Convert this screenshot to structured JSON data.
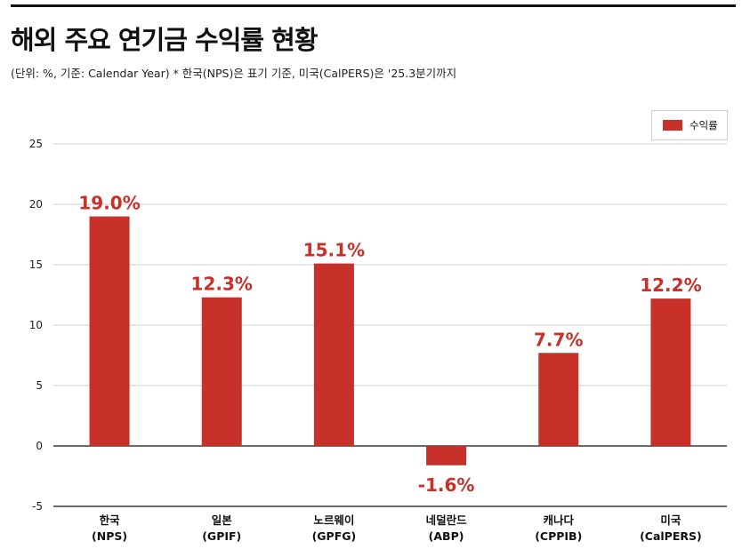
{
  "header": {
    "title": "해외 주요 연기금 수익률 현황",
    "subtitle": "(단위: %, 기준: Calendar Year) * 한국(NPS)은 표기 기준, 미국(CalPERS)은 '25.3분기까지"
  },
  "colors": {
    "bar": "#c8302a",
    "label": "#c8302a",
    "grid": "#bdbdbd",
    "axis": "#111111"
  },
  "chart_data": {
    "type": "bar",
    "categories": [
      [
        "한국",
        "(NPS)"
      ],
      [
        "일본",
        "(GPIF)"
      ],
      [
        "노르웨이",
        "(GPFG)"
      ],
      [
        "네덜란드",
        "(ABP)"
      ],
      [
        "캐나다",
        "(CPPIB)"
      ],
      [
        "미국",
        "(CalPERS)"
      ]
    ],
    "series": [
      {
        "name": "수익률",
        "values": [
          19.0,
          12.3,
          15.1,
          -1.6,
          7.7,
          12.2
        ]
      }
    ],
    "data_labels": [
      "19.0%",
      "12.3%",
      "15.1%",
      "-1.6%",
      "7.7%",
      "12.2%"
    ],
    "ylim": [
      -5,
      25
    ],
    "yticks": [
      -5,
      0,
      5,
      10,
      15,
      20,
      25
    ],
    "grid": true,
    "legend": {
      "position": "top-right",
      "label": "수익률"
    }
  }
}
